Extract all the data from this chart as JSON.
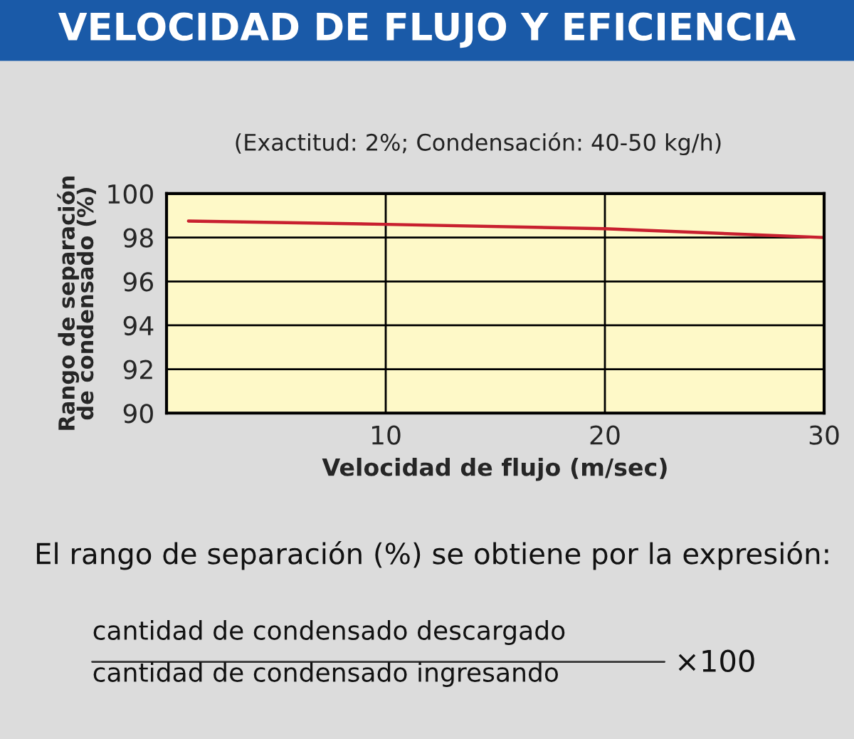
{
  "chart_data": {
    "type": "line",
    "title": "VELOCIDAD DE FLUJO Y EFICIENCIA",
    "subtitle": "(Exactitud: 2%; Condensación: 40-50 kg/h)",
    "xlabel": "Velocidad de flujo (m/sec)",
    "ylabel": "Rango de separación\nde condensado (%)",
    "x": [
      1,
      10,
      20,
      30
    ],
    "series": [
      {
        "color": "#c8202f",
        "values": [
          98.75,
          98.6,
          98.4,
          98.0
        ]
      }
    ],
    "xlim": [
      0,
      30
    ],
    "xticks": [
      10,
      20,
      30
    ],
    "ylim": [
      90,
      100
    ],
    "yticks": [
      90,
      92,
      94,
      96,
      98,
      100
    ],
    "grid": true,
    "marker": "none",
    "line_style": "solid",
    "legend": false,
    "annotations": [
      "El rango de separación (%) se obtiene por la expresión:",
      "cantidad de condensado descargado",
      "cantidad de condensado ingresando",
      "×100"
    ]
  }
}
